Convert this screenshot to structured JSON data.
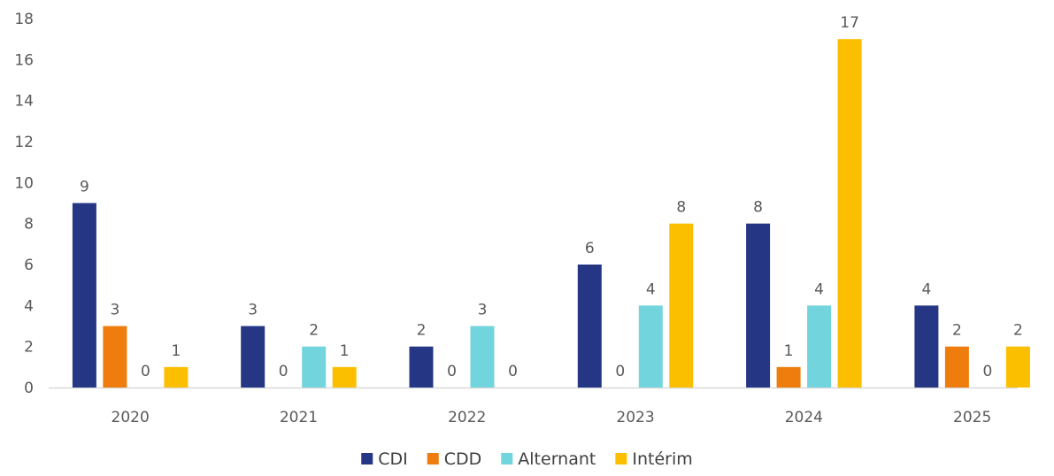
{
  "chart_data": {
    "type": "bar",
    "categories": [
      "2020",
      "2021",
      "2022",
      "2023",
      "2024",
      "2025"
    ],
    "series": [
      {
        "name": "CDI",
        "color": "#253784",
        "values": [
          9,
          3,
          2,
          6,
          8,
          4
        ]
      },
      {
        "name": "CDD",
        "color": "#ee7d0e",
        "values": [
          3,
          0,
          0,
          0,
          1,
          2
        ]
      },
      {
        "name": "Alternant",
        "color": "#72d4dc",
        "values": [
          0,
          2,
          3,
          4,
          4,
          0
        ]
      },
      {
        "name": "Intérim",
        "color": "#fbbf00",
        "values": [
          1,
          1,
          0,
          8,
          17,
          2
        ]
      }
    ],
    "ylim": [
      0,
      18
    ],
    "yticks": [
      0,
      2,
      4,
      6,
      8,
      10,
      12,
      14,
      16,
      18
    ],
    "gridlines": false,
    "data_labels": true,
    "legend": "bottom-center",
    "title": "",
    "xlabel": "",
    "ylabel": ""
  }
}
